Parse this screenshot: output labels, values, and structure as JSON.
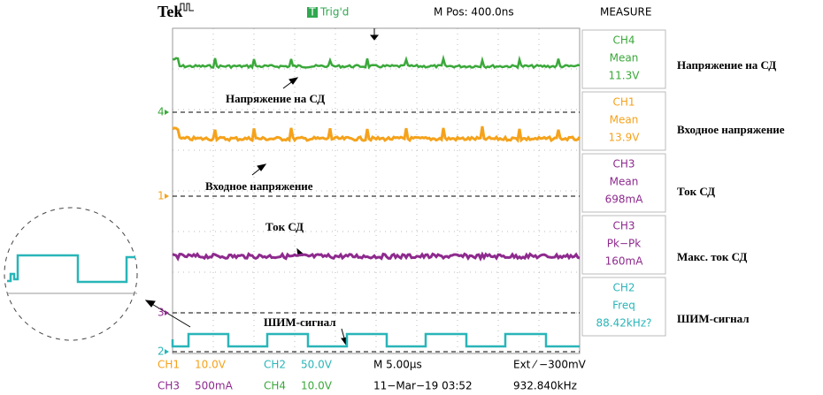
{
  "header": {
    "brand": "Tek",
    "trigger_status": "Trig'd",
    "trigger_icon": "T",
    "position": "M Pos: 400.0ns",
    "measure_title": "MEASURE"
  },
  "measurements": [
    {
      "channel": "CH4",
      "stat": "Mean",
      "value": "11.3V"
    },
    {
      "channel": "CH1",
      "stat": "Mean",
      "value": "13.9V"
    },
    {
      "channel": "CH3",
      "stat": "Mean",
      "value": "698mA"
    },
    {
      "channel": "CH3",
      "stat": "Pk−Pk",
      "value": "160mA"
    },
    {
      "channel": "CH2",
      "stat": "Freq",
      "value": "88.42kHz?"
    }
  ],
  "channel_markers": [
    "4",
    "1",
    "3",
    "2"
  ],
  "annotations": [
    "Напряжение на СД",
    "Входное напряжение",
    "Ток СД",
    "ШИМ-сигнал"
  ],
  "side_labels": [
    "Напряжение на СД",
    "Входное напряжение",
    "Ток СД",
    "Макс. ток СД",
    "ШИМ-сигнал"
  ],
  "footer": {
    "row1": [
      "CH1",
      "10.0V",
      "CH2",
      "50.0V",
      "M 5.00µs",
      "Ext ⁄ −300mV"
    ],
    "row2": [
      "CH3",
      "500mA",
      "CH4",
      "10.0V",
      "11−Mar−19 03:52",
      "932.840kHz"
    ]
  }
}
